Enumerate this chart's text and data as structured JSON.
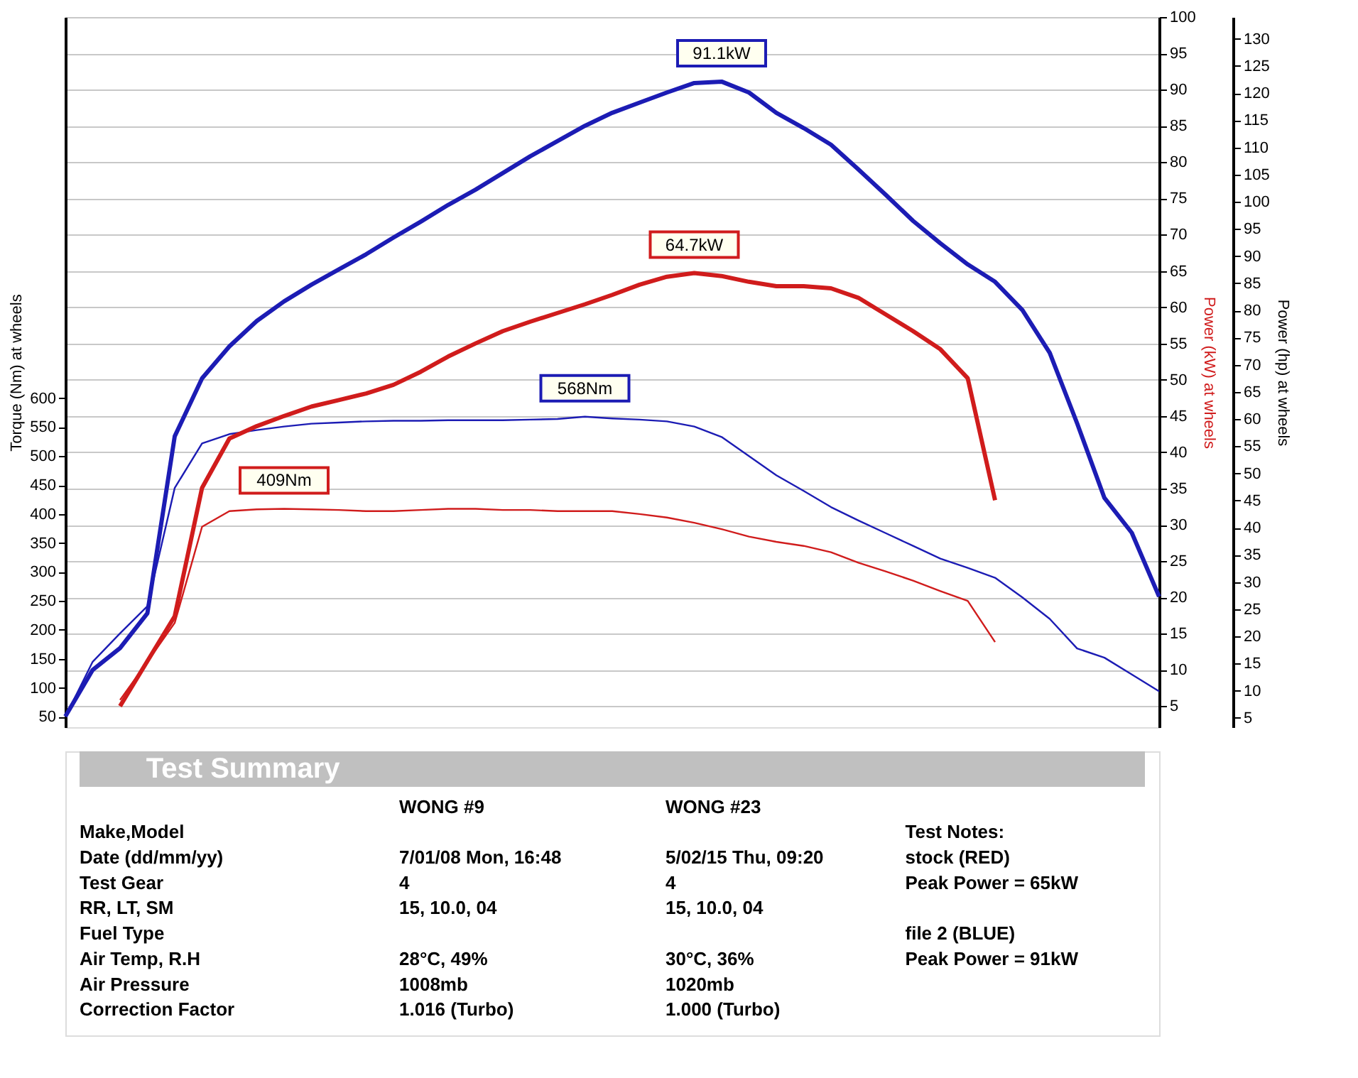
{
  "chart_data": [
    {
      "type": "line",
      "ylabel": "Torque (Nm) at wheels",
      "y3label": "Power (kW) at wheels",
      "y2label": "Power (hp) at wheels",
      "ylim": [
        32,
        1258
      ],
      "yticks": [
        50,
        100,
        150,
        200,
        250,
        300,
        350,
        400,
        450,
        500,
        550,
        600
      ],
      "y3lim": [
        2.1,
        100
      ],
      "y3ticks": [
        5,
        10,
        15,
        20,
        25,
        30,
        35,
        40,
        45,
        50,
        55,
        60,
        65,
        70,
        75,
        80,
        85,
        90,
        95,
        100
      ],
      "y2lim": [
        3.3,
        134
      ],
      "y2ticks": [
        5,
        10,
        15,
        20,
        25,
        30,
        35,
        40,
        45,
        50,
        55,
        60,
        65,
        70,
        75,
        80,
        85,
        90,
        95,
        100,
        105,
        110,
        115,
        120,
        125,
        130
      ],
      "grid": "y",
      "categories": [
        null,
        null,
        null,
        null,
        null,
        null,
        null,
        null,
        null,
        null,
        null,
        null,
        null,
        null,
        null,
        null,
        null,
        null,
        null,
        null,
        null,
        null,
        null,
        null,
        null,
        null,
        null,
        null,
        null,
        null,
        null,
        null,
        null,
        null,
        null,
        null,
        null,
        null,
        null,
        null,
        null
      ],
      "series": [
        {
          "color": "#1c1cb4",
          "axis": "y3",
          "values": [
            3.6,
            10.0,
            13.0,
            17.8,
            42.2,
            50.2,
            54.6,
            58.1,
            60.8,
            63.1,
            65.2,
            67.3,
            69.6,
            71.8,
            74.1,
            76.2,
            78.5,
            80.8,
            82.9,
            85.0,
            86.8,
            88.2,
            89.6,
            90.9,
            91.1,
            89.6,
            86.8,
            84.7,
            82.4,
            79.0,
            75.5,
            71.9,
            68.8,
            65.9,
            63.5,
            59.6,
            53.7,
            44.0,
            33.7,
            28.9,
            20.1
          ]
        },
        {
          "color": "#d01c1c",
          "axis": "y3",
          "values": [
            null,
            null,
            5.0,
            11.2,
            17.4,
            35.1,
            41.9,
            43.6,
            45.0,
            46.3,
            47.2,
            48.1,
            49.3,
            51.1,
            53.2,
            55.0,
            56.7,
            58.0,
            59.2,
            60.4,
            61.7,
            63.1,
            64.2,
            64.7,
            64.3,
            63.5,
            62.9,
            62.9,
            62.6,
            61.3,
            59.0,
            56.7,
            54.2,
            50.2,
            33.4,
            null,
            null,
            null,
            null,
            null,
            null
          ]
        },
        {
          "color": "#1c1cb4",
          "axis": "y",
          "values": [
            50,
            145,
            194,
            241,
            445,
            522,
            538,
            545,
            551,
            556,
            558,
            560,
            561,
            561,
            562,
            562,
            562,
            563,
            564,
            568,
            565,
            563,
            560,
            551,
            533,
            500,
            467,
            440,
            412,
            389,
            367,
            345,
            323,
            307,
            290,
            256,
            219,
            168,
            152,
            123,
            94
          ]
        },
        {
          "color": "#d01c1c",
          "axis": "y",
          "values": [
            null,
            null,
            79,
            145,
            212,
            378,
            405,
            408,
            409,
            408,
            407,
            405,
            405,
            407,
            409,
            409,
            407,
            407,
            405,
            405,
            405,
            400,
            394,
            385,
            374,
            361,
            352,
            345,
            334,
            316,
            301,
            285,
            267,
            250,
            179,
            null,
            null,
            null,
            null,
            null,
            null
          ]
        }
      ],
      "annotations": [
        "91.1kW",
        "64.7kW",
        "568Nm",
        "409Nm"
      ]
    },
    {
      "type": "other",
      "title": "Test Summary",
      "annotations": [
        "Make,Model",
        "Date (dd/mm/yy)",
        "Test Gear",
        "RR, LT, SM",
        "Fuel Type",
        "Air Temp, R.H",
        "Air Pressure",
        "Correction Factor",
        "WONG  #9",
        "7/01/08 Mon, 16:48",
        "4",
        "15,    10.0,    04",
        "28°C,     49%",
        "1008mb",
        "1.016 (Turbo)",
        "WONG  #23",
        "5/02/15 Thu, 09:20",
        "4",
        "15,    10.0,    04",
        "30°C,     36%",
        "1020mb",
        "1.000 (Turbo)",
        "Test Notes:",
        "stock (RED)",
        "Peak Power = 65kW",
        "file 2 (BLUE)",
        "Peak Power = 91kW"
      ]
    }
  ]
}
